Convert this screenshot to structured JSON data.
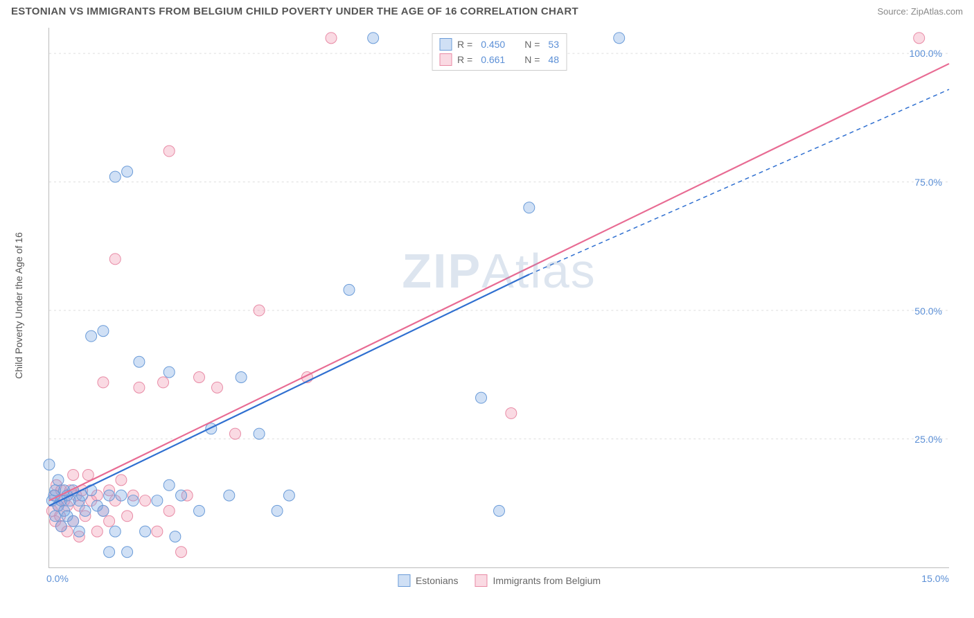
{
  "header": {
    "title": "ESTONIAN VS IMMIGRANTS FROM BELGIUM CHILD POVERTY UNDER THE AGE OF 16 CORRELATION CHART",
    "source_prefix": "Source: ",
    "source": "ZipAtlas.com"
  },
  "watermark": {
    "zip": "ZIP",
    "atlas": "Atlas"
  },
  "chart": {
    "type": "scatter",
    "y_axis_label": "Child Poverty Under the Age of 16",
    "xlim": [
      0,
      15
    ],
    "ylim": [
      0,
      105
    ],
    "x_ticks": [
      {
        "value": 0,
        "label": "0.0%"
      },
      {
        "value": 15,
        "label": "15.0%"
      }
    ],
    "y_ticks": [
      {
        "value": 25,
        "label": "25.0%"
      },
      {
        "value": 50,
        "label": "50.0%"
      },
      {
        "value": 75,
        "label": "75.0%"
      },
      {
        "value": 100,
        "label": "100.0%"
      }
    ],
    "grid_color": "#dddddd",
    "axis_color": "#bbbbbb",
    "background_color": "#ffffff",
    "tick_label_color": "#5b8fd6",
    "axis_label_color": "#555555",
    "series": [
      {
        "id": "estonians",
        "label": "Estonians",
        "marker_fill": "rgba(120,165,225,0.35)",
        "marker_stroke": "#6a9bd8",
        "marker_radius": 8,
        "trend_color": "#2f6fd0",
        "trend_dash_extend": true,
        "R": "0.450",
        "N": "53",
        "trend": {
          "x1": 0,
          "y1": 12,
          "x2_solid": 8,
          "y2_solid": 57,
          "x2_ext": 15,
          "y2_ext": 93
        },
        "points": [
          [
            0.0,
            20
          ],
          [
            0.05,
            13
          ],
          [
            0.08,
            14
          ],
          [
            0.1,
            10
          ],
          [
            0.1,
            15
          ],
          [
            0.15,
            12
          ],
          [
            0.15,
            17
          ],
          [
            0.2,
            8
          ],
          [
            0.2,
            13
          ],
          [
            0.25,
            11
          ],
          [
            0.25,
            15
          ],
          [
            0.3,
            10
          ],
          [
            0.3,
            14
          ],
          [
            0.35,
            13
          ],
          [
            0.4,
            9
          ],
          [
            0.4,
            15
          ],
          [
            0.5,
            7
          ],
          [
            0.5,
            13
          ],
          [
            0.55,
            14
          ],
          [
            0.6,
            11
          ],
          [
            0.7,
            15
          ],
          [
            0.7,
            45
          ],
          [
            0.8,
            12
          ],
          [
            0.9,
            11
          ],
          [
            0.9,
            46
          ],
          [
            1.0,
            3
          ],
          [
            1.0,
            14
          ],
          [
            1.1,
            7
          ],
          [
            1.1,
            76
          ],
          [
            1.2,
            14
          ],
          [
            1.3,
            3
          ],
          [
            1.3,
            77
          ],
          [
            1.4,
            13
          ],
          [
            1.5,
            40
          ],
          [
            1.6,
            7
          ],
          [
            1.8,
            13
          ],
          [
            2.0,
            16
          ],
          [
            2.0,
            38
          ],
          [
            2.1,
            6
          ],
          [
            2.2,
            14
          ],
          [
            2.5,
            11
          ],
          [
            2.7,
            27
          ],
          [
            3.0,
            14
          ],
          [
            3.2,
            37
          ],
          [
            3.5,
            26
          ],
          [
            3.8,
            11
          ],
          [
            4.0,
            14
          ],
          [
            5.0,
            54
          ],
          [
            5.4,
            103
          ],
          [
            7.2,
            33
          ],
          [
            7.5,
            11
          ],
          [
            8.0,
            70
          ],
          [
            9.5,
            103
          ]
        ]
      },
      {
        "id": "belgium",
        "label": "Immigrants from Belgium",
        "marker_fill": "rgba(240,150,175,0.35)",
        "marker_stroke": "#e88aa5",
        "marker_radius": 8,
        "trend_color": "#e86b93",
        "trend_dash_extend": false,
        "R": "0.661",
        "N": "48",
        "trend": {
          "x1": 0,
          "y1": 13,
          "x2_solid": 15,
          "y2_solid": 98,
          "x2_ext": 15,
          "y2_ext": 98
        },
        "points": [
          [
            0.05,
            11
          ],
          [
            0.1,
            9
          ],
          [
            0.1,
            14
          ],
          [
            0.12,
            16
          ],
          [
            0.15,
            12
          ],
          [
            0.18,
            10
          ],
          [
            0.2,
            8
          ],
          [
            0.2,
            15
          ],
          [
            0.25,
            13
          ],
          [
            0.3,
            7
          ],
          [
            0.3,
            12
          ],
          [
            0.35,
            15
          ],
          [
            0.4,
            9
          ],
          [
            0.4,
            18
          ],
          [
            0.45,
            14
          ],
          [
            0.5,
            6
          ],
          [
            0.5,
            12
          ],
          [
            0.55,
            15
          ],
          [
            0.6,
            10
          ],
          [
            0.65,
            18
          ],
          [
            0.7,
            13
          ],
          [
            0.8,
            7
          ],
          [
            0.8,
            14
          ],
          [
            0.9,
            11
          ],
          [
            0.9,
            36
          ],
          [
            1.0,
            9
          ],
          [
            1.0,
            15
          ],
          [
            1.1,
            13
          ],
          [
            1.1,
            60
          ],
          [
            1.2,
            17
          ],
          [
            1.3,
            10
          ],
          [
            1.4,
            14
          ],
          [
            1.5,
            35
          ],
          [
            1.6,
            13
          ],
          [
            1.8,
            7
          ],
          [
            1.9,
            36
          ],
          [
            2.0,
            11
          ],
          [
            2.0,
            81
          ],
          [
            2.2,
            3
          ],
          [
            2.3,
            14
          ],
          [
            2.5,
            37
          ],
          [
            2.8,
            35
          ],
          [
            3.1,
            26
          ],
          [
            3.5,
            50
          ],
          [
            4.3,
            37
          ],
          [
            4.7,
            103
          ],
          [
            7.7,
            30
          ],
          [
            14.5,
            103
          ]
        ]
      }
    ],
    "legend_box": {
      "rows": [
        {
          "series": "estonians",
          "r_label": "R =",
          "n_label": "N ="
        },
        {
          "series": "belgium",
          "r_label": "R =",
          "n_label": "N ="
        }
      ]
    }
  }
}
